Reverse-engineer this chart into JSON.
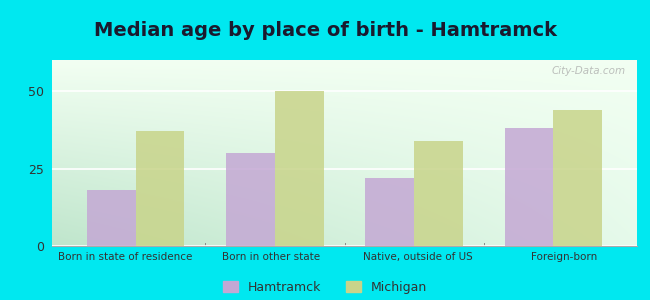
{
  "title": "Median age by place of birth - Hamtramck",
  "categories": [
    "Born in state of residence",
    "Born in other state",
    "Native, outside of US",
    "Foreign-born"
  ],
  "hamtramck_values": [
    18,
    30,
    22,
    38
  ],
  "michigan_values": [
    37,
    50,
    34,
    44
  ],
  "hamtramck_color": "#c4a8d4",
  "michigan_color": "#c8d48a",
  "ylim": [
    0,
    60
  ],
  "yticks": [
    0,
    25,
    50
  ],
  "background_outer": "#00e8f0",
  "legend_hamtramck": "Hamtramck",
  "legend_michigan": "Michigan",
  "title_fontsize": 14,
  "bar_width": 0.35,
  "watermark": "City-Data.com"
}
